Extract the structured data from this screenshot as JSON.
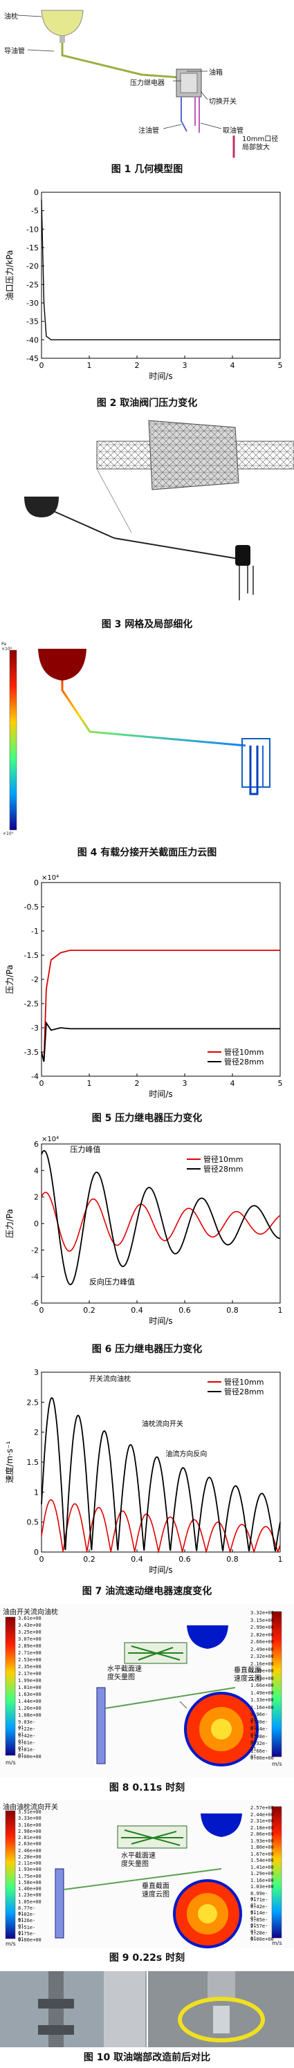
{
  "fig1": {
    "labels": {
      "tank": "油枕",
      "pipe": "导油管",
      "relay": "压力继电器",
      "box": "油箱",
      "switch": "切换开关",
      "inlet": "注油管",
      "outlet": "取油管",
      "local": "10mm口径\n局部放大"
    },
    "caption": "图 1  几何模型图"
  },
  "fig2": {
    "caption": "图 2  取油阀门压力变化",
    "chart_data": {
      "type": "line",
      "xlabel": "时间/s",
      "ylabel": "油口压力/kPa",
      "xlim": [
        0,
        5
      ],
      "ylim": [
        -45,
        0
      ],
      "xticks": [
        "0",
        "1",
        "2",
        "3",
        "4",
        "5"
      ],
      "yticks": [
        "0",
        "-5",
        "-10",
        "-15",
        "-20",
        "-25",
        "-30",
        "-35",
        "-40",
        "-45"
      ],
      "series": [
        {
          "color": "#000000",
          "x": [
            0,
            0.05,
            0.1,
            0.2,
            5
          ],
          "y": [
            -2,
            -30,
            -39,
            -40,
            -40
          ]
        }
      ]
    }
  },
  "fig3": {
    "caption": "图 3  网格及局部细化"
  },
  "fig4": {
    "caption": "图 4  有载分接开关截面压力云图",
    "colorbar": {
      "top": "Pa\n×10⁴",
      "bottom": "×10⁴"
    }
  },
  "fig5": {
    "caption": "图 5  压力继电器压力变化",
    "chart_data": {
      "type": "line",
      "xlabel": "时间/s",
      "ylabel": "压力/Pa",
      "multiplier": "×10⁴",
      "xlim": [
        0,
        5
      ],
      "ylim": [
        -4,
        0
      ],
      "xticks": [
        "0",
        "1",
        "2",
        "3",
        "4",
        "5"
      ],
      "yticks": [
        "0",
        "-0.5",
        "-1",
        "-1.5",
        "-2",
        "-2.5",
        "-3",
        "-3.5",
        "-4"
      ],
      "series": [
        {
          "name": "管径10mm",
          "color": "#e00000",
          "x": [
            0,
            0.05,
            0.1,
            0.2,
            0.4,
            0.6,
            5
          ],
          "y": [
            -3.5,
            -3.7,
            -2.2,
            -1.6,
            -1.45,
            -1.4,
            -1.4
          ]
        },
        {
          "name": "管径28mm",
          "color": "#000000",
          "x": [
            0,
            0.05,
            0.1,
            0.2,
            0.4,
            0.6,
            5
          ],
          "y": [
            -3.5,
            -3.7,
            -2.9,
            -3.05,
            -3.0,
            -3.02,
            -3.02
          ]
        }
      ]
    }
  },
  "fig6": {
    "caption": "图 6  压力继电器压力变化",
    "chart_data": {
      "type": "line",
      "xlabel": "时间/s",
      "ylabel": "压力/Pa",
      "multiplier": "×10⁴",
      "xlim": [
        0,
        1
      ],
      "ylim": [
        -6,
        6
      ],
      "xticks": [
        "0",
        "0.2",
        "0.4",
        "0.6",
        "0.8",
        "1"
      ],
      "yticks": [
        "6",
        "4",
        "2",
        "0",
        "-2",
        "-4",
        "-6"
      ],
      "annotations": [
        "压力峰值",
        "反向压力峰值"
      ],
      "series": [
        {
          "name": "管径10mm",
          "color": "#e00000"
        },
        {
          "name": "管径28mm",
          "color": "#000000"
        }
      ]
    }
  },
  "fig7": {
    "caption": "图 7  油流速动继电器速度变化",
    "chart_data": {
      "type": "line",
      "xlabel": "时间/s",
      "ylabel": "速度/m·s⁻¹",
      "xlim": [
        0,
        1
      ],
      "ylim": [
        0,
        3
      ],
      "xticks": [
        "0",
        "0.2",
        "0.4",
        "0.6",
        "0.8",
        "1"
      ],
      "yticks": [
        "3",
        "2.5",
        "2",
        "1.5",
        "1",
        "0.5",
        "0"
      ],
      "annotations": [
        "开关流向油枕",
        "油枕流向开关",
        "油流方向反向"
      ],
      "series": [
        {
          "name": "管径10mm",
          "color": "#e00000"
        },
        {
          "name": "管径28mm",
          "color": "#000000"
        }
      ]
    }
  },
  "fig8": {
    "caption": "图 8  0.11s 时刻",
    "title": "油由开关流向油枕",
    "label_h": "水平截面速\n度矢量图",
    "label_v": "垂直截面\n速度云图",
    "left_bar": [
      "3.61e+00",
      "3.43e+00",
      "3.25e+00",
      "3.07e+00",
      "2.89e+00",
      "2.71e+00",
      "2.53e+00",
      "2.35e+00",
      "2.17e+00",
      "1.99e+00",
      "1.81e+00",
      "1.63e+00",
      "1.44e+00",
      "1.26e+00",
      "1.08e+00",
      "9.03e-01",
      "7.22e-01",
      "5.42e-01",
      "3.61e-01",
      "1.81e-01",
      "0.00e+00"
    ],
    "right_bar": [
      "3.32e+00",
      "3.15e+00",
      "2.99e+00",
      "2.82e+00",
      "2.66e+00",
      "2.49e+00",
      "2.32e+00",
      "2.16e+00",
      "1.99e+00",
      "1.83e+00",
      "1.66e+00",
      "1.49e+00",
      "1.33e+00",
      "1.16e+00",
      "9.96e-01",
      "8.30e-01",
      "6.64e-01",
      "4.98e-01",
      "3.32e-01",
      "1.66e-01",
      "0.00e+00"
    ],
    "unit": "m/s"
  },
  "fig9": {
    "caption": "图 9  0.22s 时刻",
    "title": "油由油枕流向开关",
    "label_h": "水平截面速\n度矢量图",
    "label_v": "垂直截面\n速度云图",
    "left_bar": [
      "3.51e+00",
      "3.33e+00",
      "3.16e+00",
      "2.98e+00",
      "2.81e+00",
      "2.63e+00",
      "2.46e+00",
      "2.28e+00",
      "2.11e+00",
      "1.93e+00",
      "1.75e+00",
      "1.58e+00",
      "1.40e+00",
      "1.23e+00",
      "1.05e+00",
      "8.77e-01",
      "7.02e-01",
      "5.26e-01",
      "3.51e-01",
      "1.75e-01",
      "0.00e+00"
    ],
    "right_bar": [
      "2.57e+00",
      "2.44e+00",
      "2.31e+00",
      "2.18e+00",
      "2.06e+00",
      "1.93e+00",
      "1.80e+00",
      "1.67e+00",
      "1.54e+00",
      "1.41e+00",
      "1.29e+00",
      "1.16e+00",
      "1.03e+00",
      "8.99e-01",
      "7.71e-01",
      "6.42e-01",
      "5.14e-01",
      "3.85e-01",
      "2.57e-01",
      "1.28e-01",
      "0.00e+00"
    ],
    "unit": "m/s"
  },
  "fig10": {
    "caption": "图 10  取油端部改造前后对比"
  }
}
